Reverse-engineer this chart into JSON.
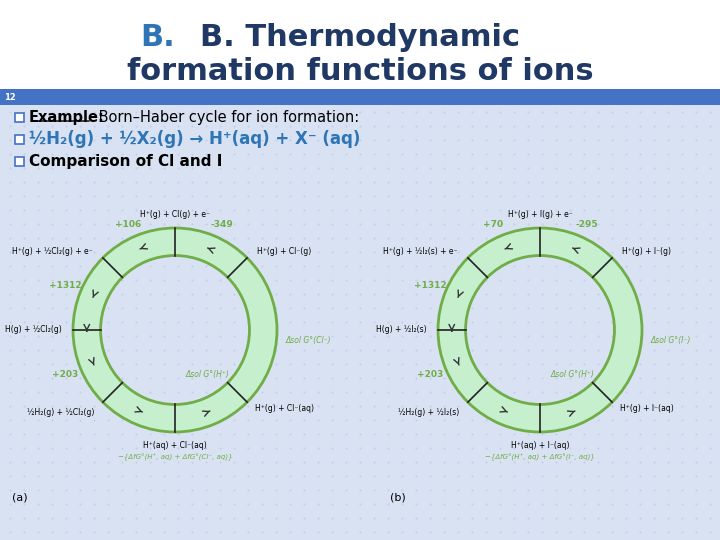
{
  "title_line1": "B. Thermodynamic",
  "title_line2": "formation functions of ions",
  "title_color": "#1F3864",
  "title_b_color": "#2E75B6",
  "header_bar_color": "#4472C4",
  "slide_number": "12",
  "body_bg_color": "#D9E2F3",
  "bullet_box_color": "#4472C4",
  "bullet1_plain": " Born–Haber cycle for ion formation:",
  "bullet2_text": "½H₂(g) + ½X₂(g) → H⁺(aq) + X⁻ (aq)",
  "bullet2_color": "#2E75B6",
  "bullet3_text": "Comparison of Cl and I",
  "green": "#70AD47",
  "green_fill": "#C6EFCE",
  "cl_top_left_val": "+106",
  "cl_top_right_val": "-349",
  "cl_left_val": "+1312",
  "cl_bot_left_val": "+203",
  "cl_right_label": "Δsol G°(Cl⁻)",
  "cl_bot_label": "Δsol G°(H⁺)",
  "i_top_left_val": "+70",
  "i_top_right_val": "-295",
  "i_left_val": "+1312",
  "i_bot_left_val": "+203",
  "i_right_label": "Δsol G°(I⁻)",
  "i_bot_label": "Δsol G°(H⁺)",
  "cl_top_node": "H⁺(g) + Cl(g) + e⁻",
  "cl_ul_node": "H⁺(g) + ½Cl₂(g) + e⁻",
  "cl_ur_node": "H⁺(g) + Cl⁻(g)",
  "cl_l_node": "H(g) + ½Cl₂(g)",
  "cl_bl_node": "½H₂(g) + ½Cl₂(g)",
  "cl_br_node": "H⁺(g) + Cl⁻(aq)",
  "cl_bot_node": "H⁺(aq) + Cl⁻(aq)",
  "cl_bot_eq": "−{ΔfG°(H⁺, aq) + ΔfG°(Cl⁻, aq)}",
  "i_top_node": "H⁺(g) + I(g) + e⁻",
  "i_ul_node": "H⁺(g) + ½I₂(s) + e⁻",
  "i_ur_node": "H⁺(g) + I⁻(g)",
  "i_l_node": "H(g) + ½I₂(s)",
  "i_bl_node": "½H₂(g) + ½I₂(s)",
  "i_br_node": "H⁺(g) + I⁻(aq)",
  "i_bot_node": "H⁺(aq) + I⁻(aq)",
  "i_bot_eq": "−{ΔfG°(H⁺, aq) + ΔfG°(I⁻, aq)}",
  "label_a": "(a)",
  "label_b": "(b)"
}
